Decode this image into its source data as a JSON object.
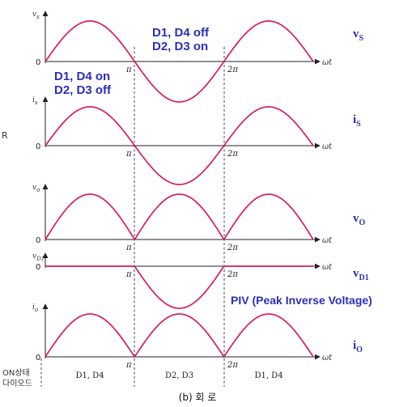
{
  "panels": [
    {
      "id": "vs",
      "ylabel": "v_s",
      "side_main": "v",
      "side_sub": "S",
      "waveform": "sine"
    },
    {
      "id": "is",
      "ylabel": "i_s",
      "side_main": "i",
      "side_sub": "S",
      "waveform": "sine"
    },
    {
      "id": "vo",
      "ylabel": "v_o",
      "side_main": "v",
      "side_sub": "O",
      "waveform": "full-rectified"
    },
    {
      "id": "vd1",
      "ylabel": "v_D1",
      "side_main": "v",
      "side_sub": "D1",
      "waveform": "negative-half"
    },
    {
      "id": "io",
      "ylabel": "i_o",
      "side_main": "i",
      "side_sub": "O",
      "waveform": "full-rectified"
    }
  ],
  "axis": {
    "x_label": "ωt",
    "origin": "0",
    "tick_pi": "π",
    "tick_2pi": "2π"
  },
  "annotations": {
    "positive_half": [
      "D1, D4 on",
      "D2, D3 off"
    ],
    "negative_half": [
      "D1, D4 off",
      "D2, D3 on"
    ],
    "piv": "PIV (Peak Inverse Voltage)"
  },
  "on_diode": {
    "label_line1": "ON상태",
    "label_line2": "다이오드",
    "intervals": [
      "D1, D4",
      "D2, D3",
      "D1, D4"
    ]
  },
  "side_fragment": "R",
  "caption": "(b) 회 로",
  "colors": {
    "wave": "#d81b60",
    "label": "#2b2fb8",
    "axis": "#222222"
  }
}
